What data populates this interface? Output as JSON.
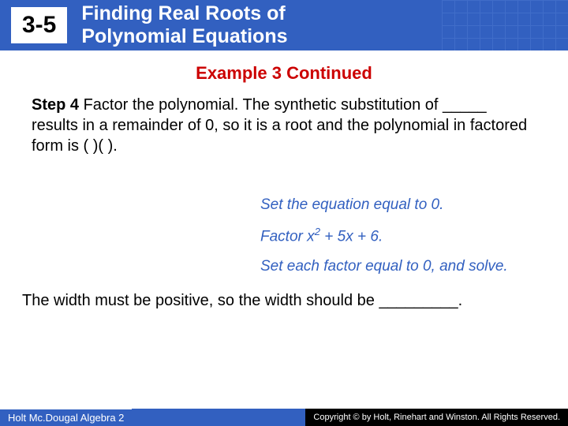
{
  "header": {
    "section_number": "3-5",
    "title_line1": "Finding Real Roots of",
    "title_line2": "Polynomial Equations",
    "bg_color": "#3260c0",
    "badge_bg": "#ffffff",
    "title_color": "#ffffff"
  },
  "example_label": "Example 3 Continued",
  "example_color": "#cc0000",
  "step": {
    "label": "Step 4",
    "text": " Factor the polynomial. The synthetic substitution of _____ results in a remainder of 0, so it is a root and the polynomial in factored form is (      )(                 )."
  },
  "hints": {
    "color": "#3260c0",
    "items": [
      "Set the equation equal to 0.",
      "Factor x² + 5x + 6.",
      "Set each factor equal to 0, and solve."
    ],
    "factor_prefix": "Factor x",
    "factor_exp": "2",
    "factor_suffix": " + 5x + 6."
  },
  "conclusion": "The width must be positive, so the width should be _________.",
  "footer": {
    "left": "Holt Mc.Dougal Algebra 2",
    "right": "Copyright © by Holt, Rinehart and Winston. All Rights Reserved.",
    "bar_color": "#3260c0"
  }
}
